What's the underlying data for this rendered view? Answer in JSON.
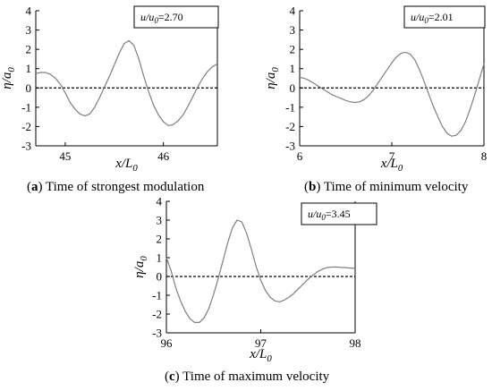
{
  "chart_data": [
    {
      "type": "line",
      "panel_letter": "a",
      "caption": "Time of strongest modulation",
      "legend_text": "=2.70",
      "xlabel": "x/L0",
      "ylabel": "η/a0",
      "xlim": [
        44.7,
        46.55
      ],
      "ylim": [
        -3,
        4
      ],
      "xticks": [
        45,
        46
      ],
      "yticks": [
        -3,
        -2,
        -1,
        0,
        1,
        2,
        3,
        4
      ],
      "series": [
        {
          "x": [
            44.7,
            44.75,
            44.8,
            44.85,
            44.9,
            44.95,
            45.0,
            45.05,
            45.1,
            45.15,
            45.2,
            45.25,
            45.3,
            45.35,
            45.4,
            45.45,
            45.5,
            45.55,
            45.6,
            45.65,
            45.7,
            45.75,
            45.8,
            45.85,
            45.9,
            45.95,
            46.0,
            46.05,
            46.1,
            46.15,
            46.2,
            46.25,
            46.3,
            46.35,
            46.4,
            46.45,
            46.5,
            46.55
          ],
          "y": [
            0.75,
            0.8,
            0.8,
            0.7,
            0.5,
            0.2,
            -0.25,
            -0.75,
            -1.1,
            -1.35,
            -1.45,
            -1.35,
            -1.0,
            -0.5,
            0.05,
            0.6,
            1.2,
            1.8,
            2.3,
            2.45,
            2.2,
            1.5,
            0.6,
            -0.2,
            -0.9,
            -1.4,
            -1.75,
            -1.95,
            -1.9,
            -1.7,
            -1.4,
            -0.95,
            -0.45,
            0.05,
            0.5,
            0.85,
            1.1,
            1.25
          ]
        }
      ],
      "zero_line": 0
    },
    {
      "type": "line",
      "panel_letter": "b",
      "caption": "Time of minimum velocity",
      "legend_text": "=2.01",
      "xlabel": "x/L0",
      "ylabel": "η/a0",
      "xlim": [
        6,
        8
      ],
      "ylim": [
        -3,
        4
      ],
      "xticks": [
        6,
        7,
        8
      ],
      "yticks": [
        -3,
        -2,
        -1,
        0,
        1,
        2,
        3,
        4
      ],
      "series": [
        {
          "x": [
            6.0,
            6.05,
            6.1,
            6.15,
            6.2,
            6.25,
            6.3,
            6.35,
            6.4,
            6.45,
            6.5,
            6.55,
            6.6,
            6.65,
            6.7,
            6.75,
            6.8,
            6.85,
            6.9,
            6.95,
            7.0,
            7.05,
            7.1,
            7.15,
            7.2,
            7.25,
            7.3,
            7.35,
            7.4,
            7.45,
            7.5,
            7.55,
            7.6,
            7.65,
            7.7,
            7.75,
            7.8,
            7.85,
            7.9,
            7.95,
            8.0
          ],
          "y": [
            0.55,
            0.5,
            0.4,
            0.25,
            0.1,
            -0.05,
            -0.2,
            -0.35,
            -0.45,
            -0.55,
            -0.65,
            -0.72,
            -0.75,
            -0.72,
            -0.6,
            -0.4,
            -0.1,
            0.25,
            0.6,
            0.95,
            1.3,
            1.6,
            1.8,
            1.85,
            1.75,
            1.45,
            0.95,
            0.35,
            -0.3,
            -0.95,
            -1.5,
            -2.0,
            -2.35,
            -2.5,
            -2.45,
            -2.2,
            -1.75,
            -1.1,
            -0.35,
            0.45,
            1.25
          ]
        }
      ],
      "zero_line": 0
    },
    {
      "type": "line",
      "panel_letter": "c",
      "caption": "Time of maximum velocity",
      "legend_text": "=3.45",
      "xlabel": "x/L0",
      "ylabel": "η/a0",
      "xlim": [
        96,
        98
      ],
      "ylim": [
        -3,
        4
      ],
      "xticks": [
        96,
        97,
        98
      ],
      "yticks": [
        -3,
        -2,
        -1,
        0,
        1,
        2,
        3,
        4
      ],
      "series": [
        {
          "x": [
            96.0,
            96.05,
            96.1,
            96.15,
            96.2,
            96.25,
            96.3,
            96.35,
            96.4,
            96.45,
            96.5,
            96.55,
            96.6,
            96.65,
            96.7,
            96.75,
            96.8,
            96.85,
            96.9,
            96.95,
            97.0,
            97.05,
            97.1,
            97.15,
            97.2,
            97.25,
            97.3,
            97.35,
            97.4,
            97.45,
            97.5,
            97.55,
            97.6,
            97.65,
            97.7,
            97.75,
            97.8,
            97.85,
            97.9,
            97.95,
            98.0
          ],
          "y": [
            1.0,
            0.3,
            -0.6,
            -1.3,
            -1.85,
            -2.25,
            -2.45,
            -2.45,
            -2.2,
            -1.7,
            -0.95,
            -0.1,
            0.85,
            1.8,
            2.6,
            3.0,
            2.9,
            2.3,
            1.45,
            0.55,
            -0.2,
            -0.75,
            -1.1,
            -1.3,
            -1.35,
            -1.25,
            -1.1,
            -0.9,
            -0.65,
            -0.4,
            -0.15,
            0.05,
            0.25,
            0.38,
            0.47,
            0.5,
            0.5,
            0.48,
            0.47,
            0.45,
            0.43
          ]
        }
      ],
      "zero_line": 0
    }
  ]
}
